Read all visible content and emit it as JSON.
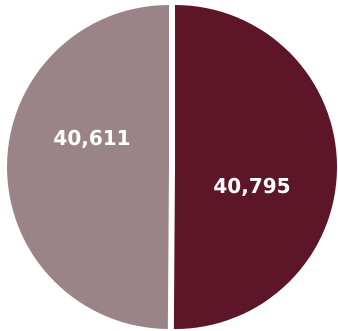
{
  "chart_data": {
    "type": "pie",
    "categories": [
      null,
      null
    ],
    "values": [
      40795,
      40611
    ],
    "value_labels": [
      "40,795",
      "40,611"
    ],
    "colors": [
      "#5c1628",
      "#9a8487"
    ],
    "start_angle": 0,
    "direction": "clockwise"
  }
}
